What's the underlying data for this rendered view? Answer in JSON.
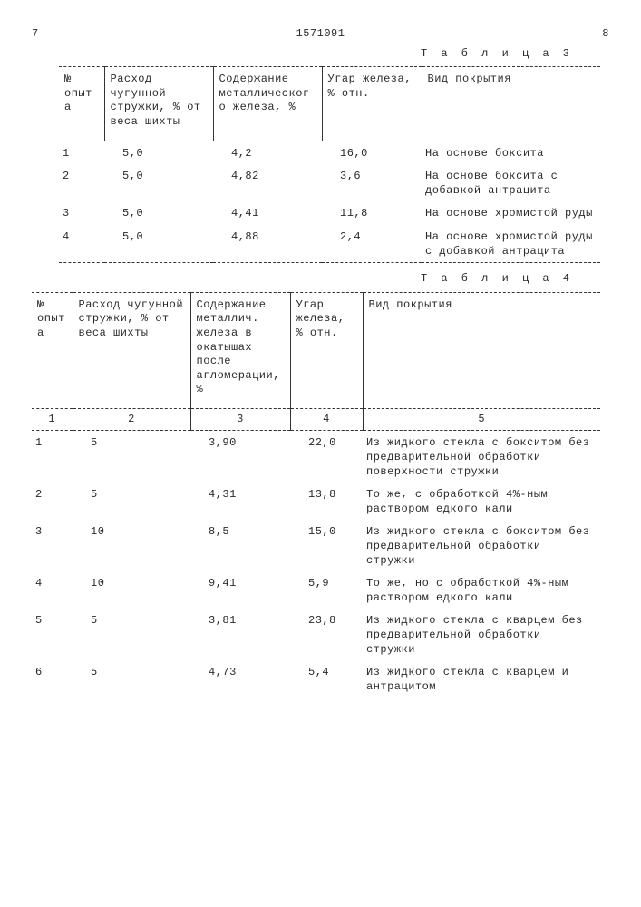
{
  "doc": {
    "page_left": "7",
    "number": "1571091",
    "page_right": "8"
  },
  "table3": {
    "caption": "Т а б л и ц а  3",
    "headers": {
      "c1": "№ опыта",
      "c2": "Расход чугунной стружки, % от веса шихты",
      "c3": "Содержание металлического железа, %",
      "c4": "Угар железа, % отн.",
      "c5": "Вид покрытия"
    },
    "rows": [
      {
        "n": "1",
        "a": "5,0",
        "b": "4,2",
        "c": "16,0",
        "d": "На основе боксита"
      },
      {
        "n": "2",
        "a": "5,0",
        "b": "4,82",
        "c": "3,6",
        "d": "На основе боксита с добавкой антрацита"
      },
      {
        "n": "3",
        "a": "5,0",
        "b": "4,41",
        "c": "11,8",
        "d": "На основе хромистой руды"
      },
      {
        "n": "4",
        "a": "5,0",
        "b": "4,88",
        "c": "2,4",
        "d": "На основе хромистой руды с добавкой антрацита"
      }
    ]
  },
  "table4": {
    "caption": "Т а б л и ц а  4",
    "headers": {
      "c1": "№ опыта",
      "c2": "Расход чугунной стружки, % от веса шихты",
      "c3": "Содержание металлич. железа в окатышах после агломерации, %",
      "c4": "Угар железа, % отн.",
      "c5": "Вид покрытия"
    },
    "subheaders": {
      "c1": "1",
      "c2": "2",
      "c3": "3",
      "c4": "4",
      "c5": "5"
    },
    "rows": [
      {
        "n": "1",
        "a": "5",
        "b": "3,90",
        "c": "22,0",
        "d": "Из жидкого стекла с бокситом без предварительной обработки поверхности стружки"
      },
      {
        "n": "2",
        "a": "5",
        "b": "4,31",
        "c": "13,8",
        "d": "То же, с обработкой 4%-ным раствором едкого кали"
      },
      {
        "n": "3",
        "a": "10",
        "b": "8,5",
        "c": "15,0",
        "d": "Из жидкого стекла с бокситом без предварительной обработки стружки"
      },
      {
        "n": "4",
        "a": "10",
        "b": "9,41",
        "c": "5,9",
        "d": "То же, но с обработкой 4%-ным раствором едкого кали"
      },
      {
        "n": "5",
        "a": "5",
        "b": "3,81",
        "c": "23,8",
        "d": "Из жидкого стекла с кварцем без предварительной обработки стружки"
      },
      {
        "n": "6",
        "a": "5",
        "b": "4,73",
        "c": "5,4",
        "d": "Из жидкого стекла с кварцем и антрацитом"
      }
    ]
  }
}
